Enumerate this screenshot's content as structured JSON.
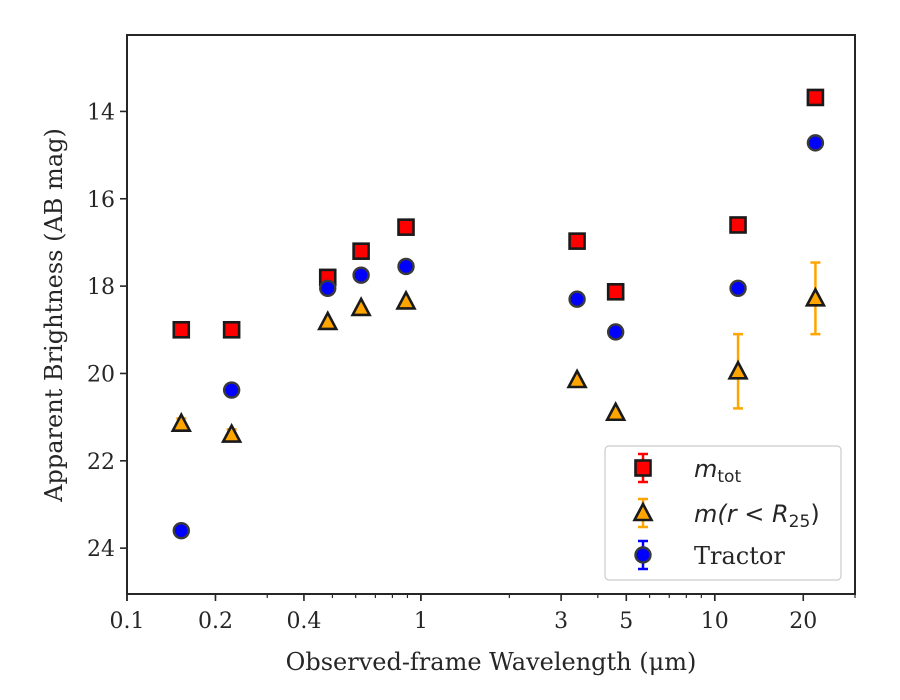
{
  "chart_data": {
    "type": "scatter",
    "xlabel": "Observed-frame Wavelength (μm)",
    "ylabel": "Apparent Brightness (AB mag)",
    "x_scale": "log",
    "xlim": [
      0.1,
      30
    ],
    "ylim": [
      25.05,
      12.25
    ],
    "y_inverted": true,
    "grid": false,
    "legend_position": "bottom-right",
    "x_ticks": [
      {
        "value": 0.1,
        "label": "0.1"
      },
      {
        "value": 0.2,
        "label": "0.2"
      },
      {
        "value": 0.4,
        "label": "0.4"
      },
      {
        "value": 1,
        "label": "1"
      },
      {
        "value": 3,
        "label": "3"
      },
      {
        "value": 5,
        "label": "5"
      },
      {
        "value": 10,
        "label": "10"
      },
      {
        "value": 20,
        "label": "20"
      }
    ],
    "y_ticks": [
      {
        "value": 14,
        "label": "14"
      },
      {
        "value": 16,
        "label": "16"
      },
      {
        "value": 18,
        "label": "18"
      },
      {
        "value": 20,
        "label": "20"
      },
      {
        "value": 22,
        "label": "22"
      },
      {
        "value": 24,
        "label": "24"
      }
    ],
    "series": [
      {
        "name": "m_tot",
        "legend_label": "m",
        "legend_sub": "tot",
        "marker": "square",
        "fill": "#ff0000",
        "edge": "#1a1a1a",
        "errcolor": "#ff0000",
        "points": [
          {
            "x": 0.153,
            "y": 19.0,
            "err": 0.03
          },
          {
            "x": 0.227,
            "y": 19.0,
            "err": 0.03
          },
          {
            "x": 0.482,
            "y": 17.8,
            "err": 0.03
          },
          {
            "x": 0.626,
            "y": 17.2,
            "err": 0.03
          },
          {
            "x": 0.89,
            "y": 16.65,
            "err": 0.03
          },
          {
            "x": 3.4,
            "y": 16.97,
            "err": 0.03
          },
          {
            "x": 4.6,
            "y": 18.13,
            "err": 0.03
          },
          {
            "x": 12.0,
            "y": 16.6,
            "err": 0.03
          },
          {
            "x": 22.0,
            "y": 13.68,
            "err": 0.03
          }
        ]
      },
      {
        "name": "m(r<R25)",
        "legend_label": "m(r",
        "legend_rest": "R",
        "legend_sub": "25",
        "marker": "triangle",
        "fill": "#ffa500",
        "edge": "#1a1a1a",
        "errcolor": "#ffa500",
        "points": [
          {
            "x": 0.153,
            "y": 21.15,
            "err": 0.12
          },
          {
            "x": 0.227,
            "y": 21.4,
            "err": 0.12
          },
          {
            "x": 0.482,
            "y": 18.82,
            "err": 0.03
          },
          {
            "x": 0.626,
            "y": 18.5,
            "err": 0.03
          },
          {
            "x": 0.89,
            "y": 18.35,
            "err": 0.03
          },
          {
            "x": 3.4,
            "y": 20.15,
            "err": 0.03
          },
          {
            "x": 4.6,
            "y": 20.9,
            "err": 0.03
          },
          {
            "x": 12.0,
            "y": 19.95,
            "err": 0.85
          },
          {
            "x": 22.0,
            "y": 18.28,
            "err": 0.82
          }
        ]
      },
      {
        "name": "Tractor",
        "legend_label": "Tractor",
        "marker": "circle",
        "fill": "#0000ff",
        "edge": "#3a3a3a",
        "errcolor": "#0000ff",
        "points": [
          {
            "x": 0.153,
            "y": 23.6,
            "err": 0.03
          },
          {
            "x": 0.227,
            "y": 20.38,
            "err": 0.03
          },
          {
            "x": 0.482,
            "y": 18.05,
            "err": 0.05
          },
          {
            "x": 0.626,
            "y": 17.75,
            "err": 0.03
          },
          {
            "x": 0.89,
            "y": 17.55,
            "err": 0.03
          },
          {
            "x": 3.4,
            "y": 18.3,
            "err": 0.03
          },
          {
            "x": 4.6,
            "y": 19.05,
            "err": 0.03
          },
          {
            "x": 12.0,
            "y": 18.05,
            "err": 0.03
          },
          {
            "x": 22.0,
            "y": 14.72,
            "err": 0.03
          }
        ]
      }
    ]
  }
}
